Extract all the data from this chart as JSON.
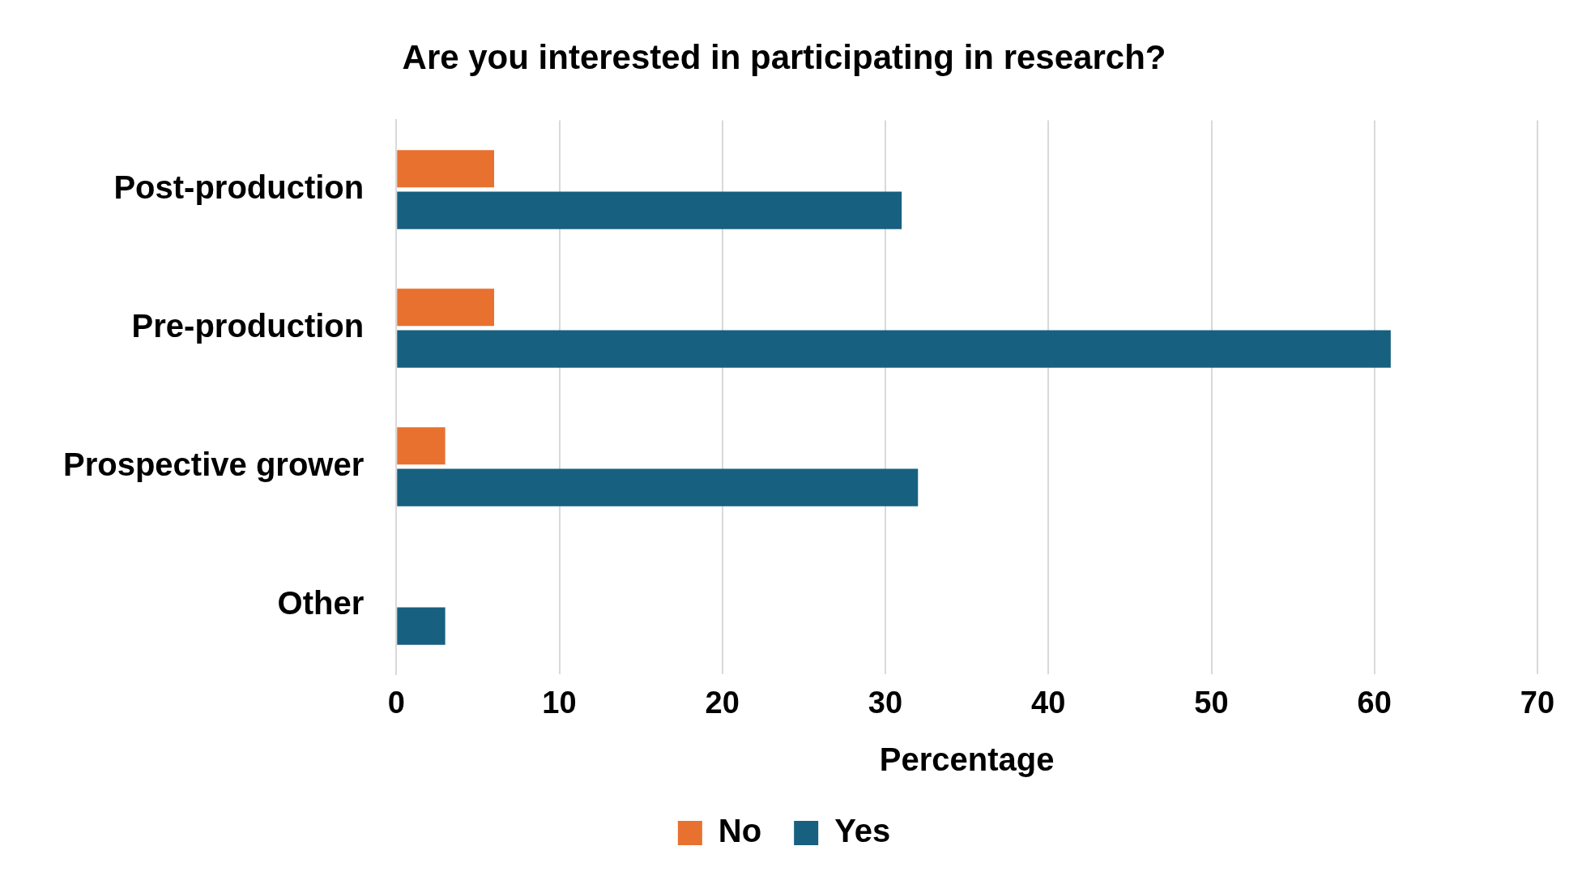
{
  "chart_data": {
    "type": "bar",
    "orientation": "horizontal",
    "title": "Are you interested in participating in research?",
    "xlabel": "Percentage",
    "categories": [
      "Post-production",
      "Pre-production",
      "Prospective grower",
      "Other"
    ],
    "series": [
      {
        "name": "No",
        "color": "#e8712f",
        "values": [
          6,
          6,
          3,
          null
        ]
      },
      {
        "name": "Yes",
        "color": "#17607f",
        "values": [
          31,
          61,
          32,
          3
        ]
      }
    ],
    "xlim": [
      0,
      70
    ],
    "xticks": [
      0,
      10,
      20,
      30,
      40,
      50,
      60,
      70
    ],
    "grid": "x",
    "legend": "bottom"
  }
}
